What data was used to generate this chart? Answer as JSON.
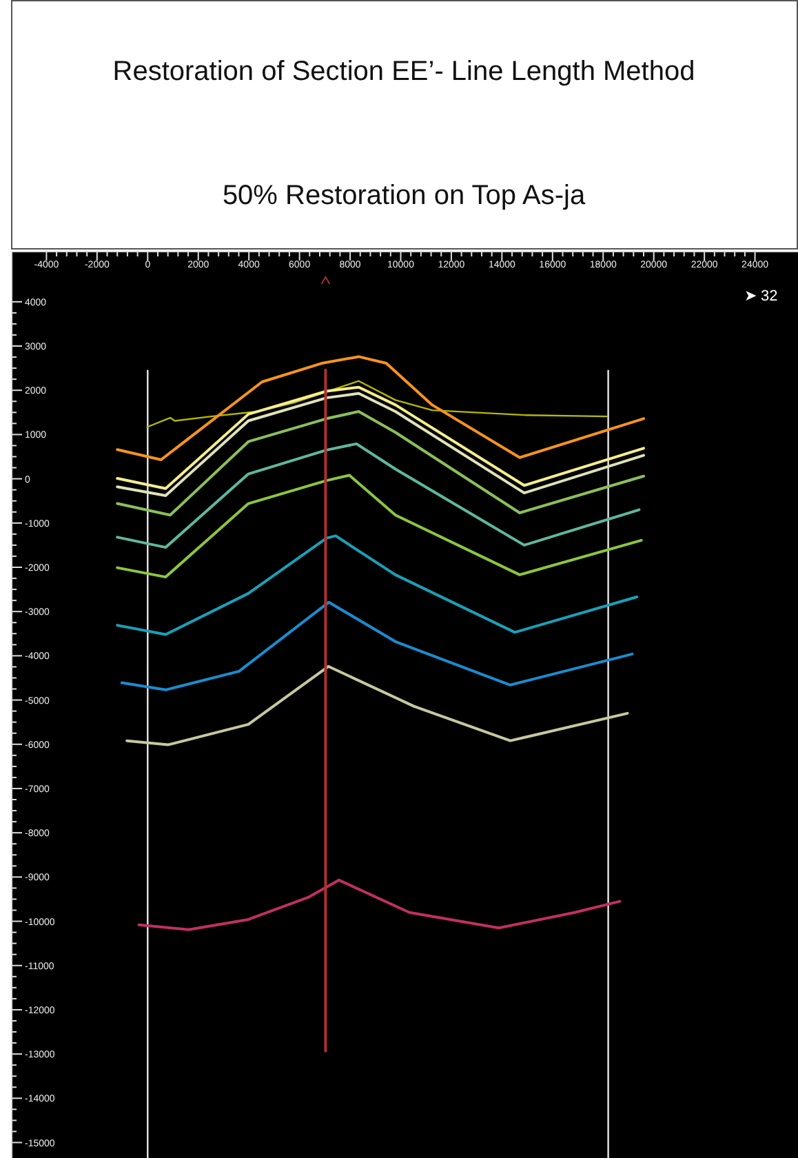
{
  "chart_data": {
    "type": "line",
    "title": "Restoration of Section EE’- Line Length Method",
    "subtitle": "50% Restoration on Top As-ja",
    "annotations": [
      "➤ 32"
    ],
    "xlim": [
      -5400,
      25700
    ],
    "ylim": [
      -15350,
      5150
    ],
    "xticks": [
      -4000,
      -2000,
      0,
      2000,
      4000,
      6000,
      8000,
      10000,
      12000,
      14000,
      16000,
      18000,
      20000,
      22000,
      24000
    ],
    "yticks": [
      4000,
      3000,
      2000,
      1000,
      0,
      -1000,
      -2000,
      -3000,
      -4000,
      -5000,
      -6000,
      -7000,
      -8000,
      -9000,
      -10000,
      -11000,
      -12000,
      -13000,
      -14000,
      -15000
    ],
    "marker": "none",
    "line_style": "solid",
    "ref_lines": [
      {
        "axis": "x",
        "value": 0,
        "color": "#e8e8e8"
      },
      {
        "axis": "x",
        "value": 18200,
        "color": "#e8e8e8"
      }
    ],
    "series": [
      {
        "color": "#b8b800",
        "x": [
          -20,
          890,
          1070,
          2520,
          4340,
          5790,
          8340,
          9790,
          11240,
          14880,
          18150
        ],
        "values": [
          1170,
          1380,
          1310,
          1410,
          1520,
          1720,
          2210,
          1780,
          1550,
          1440,
          1410
        ]
      },
      {
        "color": "#f7931e",
        "x": [
          -1200,
          530,
          4520,
          6880,
          8340,
          9430,
          11240,
          14700,
          19600
        ],
        "values": [
          660,
          430,
          2190,
          2610,
          2760,
          2610,
          1670,
          480,
          1360
        ]
      },
      {
        "color": "#f5ee8c",
        "x": [
          -1200,
          710,
          3980,
          7070,
          8340,
          9790,
          14880,
          19600
        ],
        "values": [
          10,
          -220,
          1460,
          1980,
          2070,
          1670,
          -150,
          690
        ]
      },
      {
        "color": "#e0e2b8",
        "x": [
          -1200,
          710,
          3980,
          7070,
          8340,
          9790,
          14880,
          19600
        ],
        "values": [
          -180,
          -380,
          1310,
          1830,
          1930,
          1520,
          -320,
          530
        ]
      },
      {
        "color": "#8cbf5a",
        "x": [
          -1200,
          890,
          3980,
          7070,
          8340,
          9790,
          14700,
          19600
        ],
        "values": [
          -560,
          -820,
          840,
          1360,
          1520,
          1050,
          -770,
          60
        ]
      },
      {
        "color": "#5fb8a0",
        "x": [
          -1200,
          710,
          3980,
          7070,
          8250,
          9790,
          14880,
          19420
        ],
        "values": [
          -1320,
          -1550,
          110,
          650,
          790,
          220,
          -1500,
          -700
        ]
      },
      {
        "color": "#8cc63f",
        "x": [
          -1200,
          710,
          3980,
          7070,
          7970,
          9790,
          14700,
          19510
        ],
        "values": [
          -2010,
          -2220,
          -560,
          -40,
          80,
          -820,
          -2170,
          -1390
        ]
      },
      {
        "color": "#1aa0b8",
        "x": [
          -1200,
          710,
          3980,
          7070,
          7430,
          9790,
          14510,
          19330
        ],
        "values": [
          -3310,
          -3520,
          -2590,
          -1340,
          -1290,
          -2170,
          -3470,
          -2670
        ]
      },
      {
        "color": "#1b8ccf",
        "x": [
          -1020,
          710,
          3610,
          7160,
          9790,
          14330,
          19150
        ],
        "values": [
          -4610,
          -4770,
          -4350,
          -2790,
          -3680,
          -4660,
          -3960
        ]
      },
      {
        "color": "#c8c8a0",
        "x": [
          -820,
          820,
          3980,
          7140,
          10520,
          14330,
          18960
        ],
        "values": [
          -5920,
          -6010,
          -5550,
          -4240,
          -5140,
          -5920,
          -5300
        ]
      },
      {
        "color": "#c03060",
        "x": [
          -350,
          1620,
          3980,
          6340,
          7560,
          10340,
          13880,
          16880,
          18660
        ],
        "values": [
          -10080,
          -10190,
          -9960,
          -9460,
          -9070,
          -9800,
          -10150,
          -9800,
          -9550
        ]
      },
      {
        "color": "#b03030",
        "x": [
          7030,
          7030
        ],
        "values": [
          2460,
          -12930
        ]
      }
    ]
  }
}
